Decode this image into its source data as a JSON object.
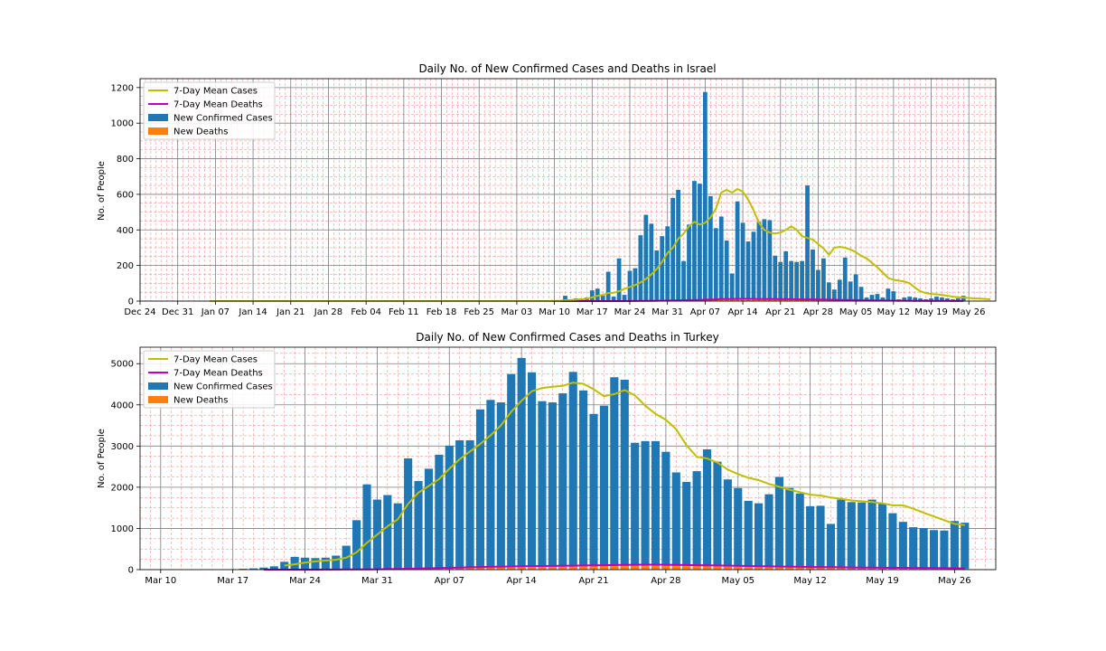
{
  "chart_data": [
    {
      "type": "bar",
      "title": "Daily No. of New Confirmed Cases and Deaths in Israel",
      "xlabel": "",
      "ylabel": "No. of People",
      "x_range": [
        "2019-12-24",
        "2020-05-31"
      ],
      "ylim": [
        0,
        1250
      ],
      "yticks": [
        0,
        200,
        400,
        600,
        800,
        1000,
        1200
      ],
      "xticks": [
        "Dec 24",
        "Dec 31",
        "Jan 07",
        "Jan 14",
        "Jan 21",
        "Jan 28",
        "Feb 04",
        "Feb 11",
        "Feb 18",
        "Feb 25",
        "Mar 03",
        "Mar 10",
        "Mar 17",
        "Mar 24",
        "Mar 31",
        "Apr 07",
        "Apr 14",
        "Apr 21",
        "Apr 28",
        "May 05",
        "May 12",
        "May 19",
        "May 26"
      ],
      "grid": true,
      "legend_position": "upper-left",
      "legend": [
        "7-Day Mean Cases",
        "7-Day Mean Deaths",
        "New Confirmed Cases",
        "New Deaths"
      ],
      "colors": {
        "cases": "#1f77b4",
        "deaths": "#ff7f0e",
        "mean_cases": "#bfbf00",
        "mean_deaths": "#bf00bf"
      },
      "start_date": "2020-01-06",
      "cases": [
        0,
        0,
        0,
        0,
        0,
        0,
        0,
        0,
        0,
        0,
        0,
        0,
        0,
        0,
        0,
        0,
        0,
        0,
        0,
        0,
        0,
        0,
        0,
        0,
        0,
        0,
        0,
        0,
        0,
        0,
        0,
        0,
        0,
        0,
        0,
        0,
        0,
        0,
        0,
        0,
        0,
        0,
        0,
        0,
        0,
        0,
        0,
        0,
        0,
        0,
        0,
        0,
        0,
        0,
        0,
        0,
        0,
        0,
        0,
        0,
        0,
        0,
        0,
        0,
        5,
        3,
        30,
        3,
        15,
        15,
        20,
        60,
        70,
        30,
        165,
        25,
        240,
        35,
        170,
        185,
        370,
        485,
        435,
        285,
        365,
        420,
        580,
        625,
        225,
        430,
        675,
        660,
        1175,
        590,
        410,
        475,
        340,
        155,
        560,
        440,
        335,
        390,
        445,
        460,
        455,
        255,
        220,
        280,
        225,
        220,
        225,
        650,
        290,
        175,
        240,
        105,
        65,
        120,
        245,
        110,
        150,
        80,
        20,
        35,
        40,
        20,
        70,
        55,
        10,
        20,
        25,
        20,
        15,
        10,
        15,
        25,
        20,
        15,
        10,
        15,
        30
      ],
      "deaths": [
        0,
        0,
        0,
        0,
        0,
        0,
        0,
        0,
        0,
        0,
        0,
        0,
        0,
        0,
        0,
        0,
        0,
        0,
        0,
        0,
        0,
        0,
        0,
        0,
        0,
        0,
        0,
        0,
        0,
        0,
        0,
        0,
        0,
        0,
        0,
        0,
        0,
        0,
        0,
        0,
        0,
        0,
        0,
        0,
        0,
        0,
        0,
        0,
        0,
        0,
        0,
        0,
        0,
        0,
        0,
        0,
        0,
        0,
        0,
        0,
        0,
        0,
        0,
        0,
        0,
        0,
        0,
        0,
        0,
        0,
        0,
        0,
        0,
        0,
        0,
        0,
        1,
        0,
        1,
        2,
        2,
        3,
        3,
        4,
        4,
        5,
        6,
        7,
        6,
        8,
        9,
        10,
        12,
        11,
        13,
        14,
        12,
        10,
        15,
        13,
        12,
        11,
        10,
        12,
        11,
        10,
        9,
        10,
        11,
        9,
        8,
        10,
        9,
        7,
        8,
        6,
        5,
        6,
        5,
        4,
        5,
        4,
        3,
        3,
        2,
        3,
        2,
        2,
        1,
        2,
        1,
        1,
        1,
        1,
        1,
        1,
        0,
        1,
        0,
        1,
        0
      ],
      "mean_cases": [
        0,
        0,
        0,
        0,
        0,
        0,
        0,
        0,
        0,
        0,
        0,
        0,
        0,
        0,
        0,
        0,
        0,
        0,
        0,
        0,
        0,
        0,
        0,
        0,
        0,
        0,
        0,
        0,
        0,
        0,
        0,
        0,
        0,
        0,
        0,
        0,
        0,
        0,
        0,
        0,
        0,
        0,
        0,
        0,
        0,
        0,
        0,
        0,
        0,
        0,
        0,
        0,
        0,
        0,
        0,
        0,
        0,
        0,
        0,
        0,
        0,
        0,
        0,
        0,
        1,
        1,
        5,
        6,
        8,
        10,
        13,
        21,
        30,
        34,
        45,
        46,
        56,
        68,
        80,
        90,
        105,
        125,
        150,
        180,
        220,
        270,
        300,
        350,
        380,
        420,
        445,
        430,
        440,
        470,
        520,
        610,
        625,
        610,
        630,
        615,
        570,
        510,
        440,
        400,
        385,
        380,
        385,
        400,
        420,
        400,
        365,
        355,
        345,
        320,
        295,
        260,
        300,
        305,
        300,
        290,
        275,
        255,
        240,
        215,
        190,
        160,
        130,
        120,
        115,
        110,
        100,
        75,
        55,
        45,
        40,
        38,
        35,
        30,
        25,
        22,
        20,
        18,
        15,
        14,
        12,
        10
      ]
    },
    {
      "type": "bar",
      "title": "Daily No. of New Confirmed Cases and Deaths in Turkey",
      "xlabel": "",
      "ylabel": "No. of People",
      "x_range": [
        "2020-03-08",
        "2020-05-30"
      ],
      "ylim": [
        0,
        5400
      ],
      "yticks": [
        0,
        1000,
        2000,
        3000,
        4000,
        5000
      ],
      "xticks": [
        "Mar 10",
        "Mar 17",
        "Mar 24",
        "Mar 31",
        "Apr 07",
        "Apr 14",
        "Apr 21",
        "Apr 28",
        "May 05",
        "May 12",
        "May 19",
        "May 26"
      ],
      "grid": true,
      "legend_position": "upper-left",
      "legend": [
        "7-Day Mean Cases",
        "7-Day Mean Deaths",
        "New Confirmed Cases",
        "New Deaths"
      ],
      "colors": {
        "cases": "#1f77b4",
        "deaths": "#ff7f0e",
        "mean_cases": "#bfbf00",
        "mean_deaths": "#bf00bf"
      },
      "start_date": "2020-03-14",
      "cases": [
        0,
        0,
        0,
        10,
        20,
        30,
        50,
        80,
        190,
        310,
        290,
        280,
        290,
        340,
        580,
        1200,
        2070,
        1700,
        1810,
        1610,
        2700,
        2150,
        2450,
        2790,
        3010,
        3140,
        3140,
        3890,
        4120,
        4060,
        4750,
        5140,
        4790,
        4090,
        4060,
        4280,
        4800,
        4350,
        3780,
        3980,
        4670,
        4610,
        3080,
        3120,
        3120,
        2860,
        2360,
        2130,
        2390,
        2920,
        2620,
        2190,
        1980,
        1670,
        1610,
        1830,
        2250,
        1980,
        1850,
        1540,
        1550,
        1110,
        1700,
        1640,
        1630,
        1700,
        1600,
        1370,
        1160,
        1030,
        1010,
        960,
        950,
        1180,
        1140
      ],
      "deaths": [
        0,
        0,
        0,
        0,
        0,
        0,
        0,
        0,
        0,
        1,
        2,
        3,
        5,
        7,
        8,
        9,
        15,
        20,
        25,
        30,
        40,
        45,
        50,
        55,
        65,
        70,
        75,
        75,
        80,
        85,
        90,
        95,
        95,
        95,
        95,
        100,
        110,
        115,
        120,
        120,
        125,
        125,
        120,
        115,
        115,
        110,
        105,
        100,
        95,
        95,
        90,
        85,
        80,
        75,
        70,
        65,
        65,
        60,
        60,
        55,
        55,
        50,
        50,
        45,
        45,
        45,
        40,
        40,
        35,
        35,
        32,
        30,
        30,
        28,
        25
      ],
      "mean_cases": [
        null,
        null,
        null,
        null,
        null,
        null,
        null,
        null,
        100,
        130,
        170,
        200,
        220,
        240,
        290,
        420,
        650,
        850,
        1050,
        1220,
        1600,
        1870,
        2030,
        2200,
        2450,
        2680,
        2870,
        3050,
        3260,
        3500,
        3830,
        4100,
        4330,
        4410,
        4440,
        4460,
        4540,
        4510,
        4380,
        4210,
        4260,
        4360,
        4230,
        3980,
        3780,
        3640,
        3410,
        3020,
        2740,
        2700,
        2600,
        2430,
        2320,
        2230,
        2170,
        2080,
        2010,
        1940,
        1880,
        1820,
        1800,
        1750,
        1720,
        1680,
        1660,
        1640,
        1610,
        1560,
        1560,
        1480,
        1380,
        1290,
        1200,
        1110,
        1080
      ]
    }
  ]
}
